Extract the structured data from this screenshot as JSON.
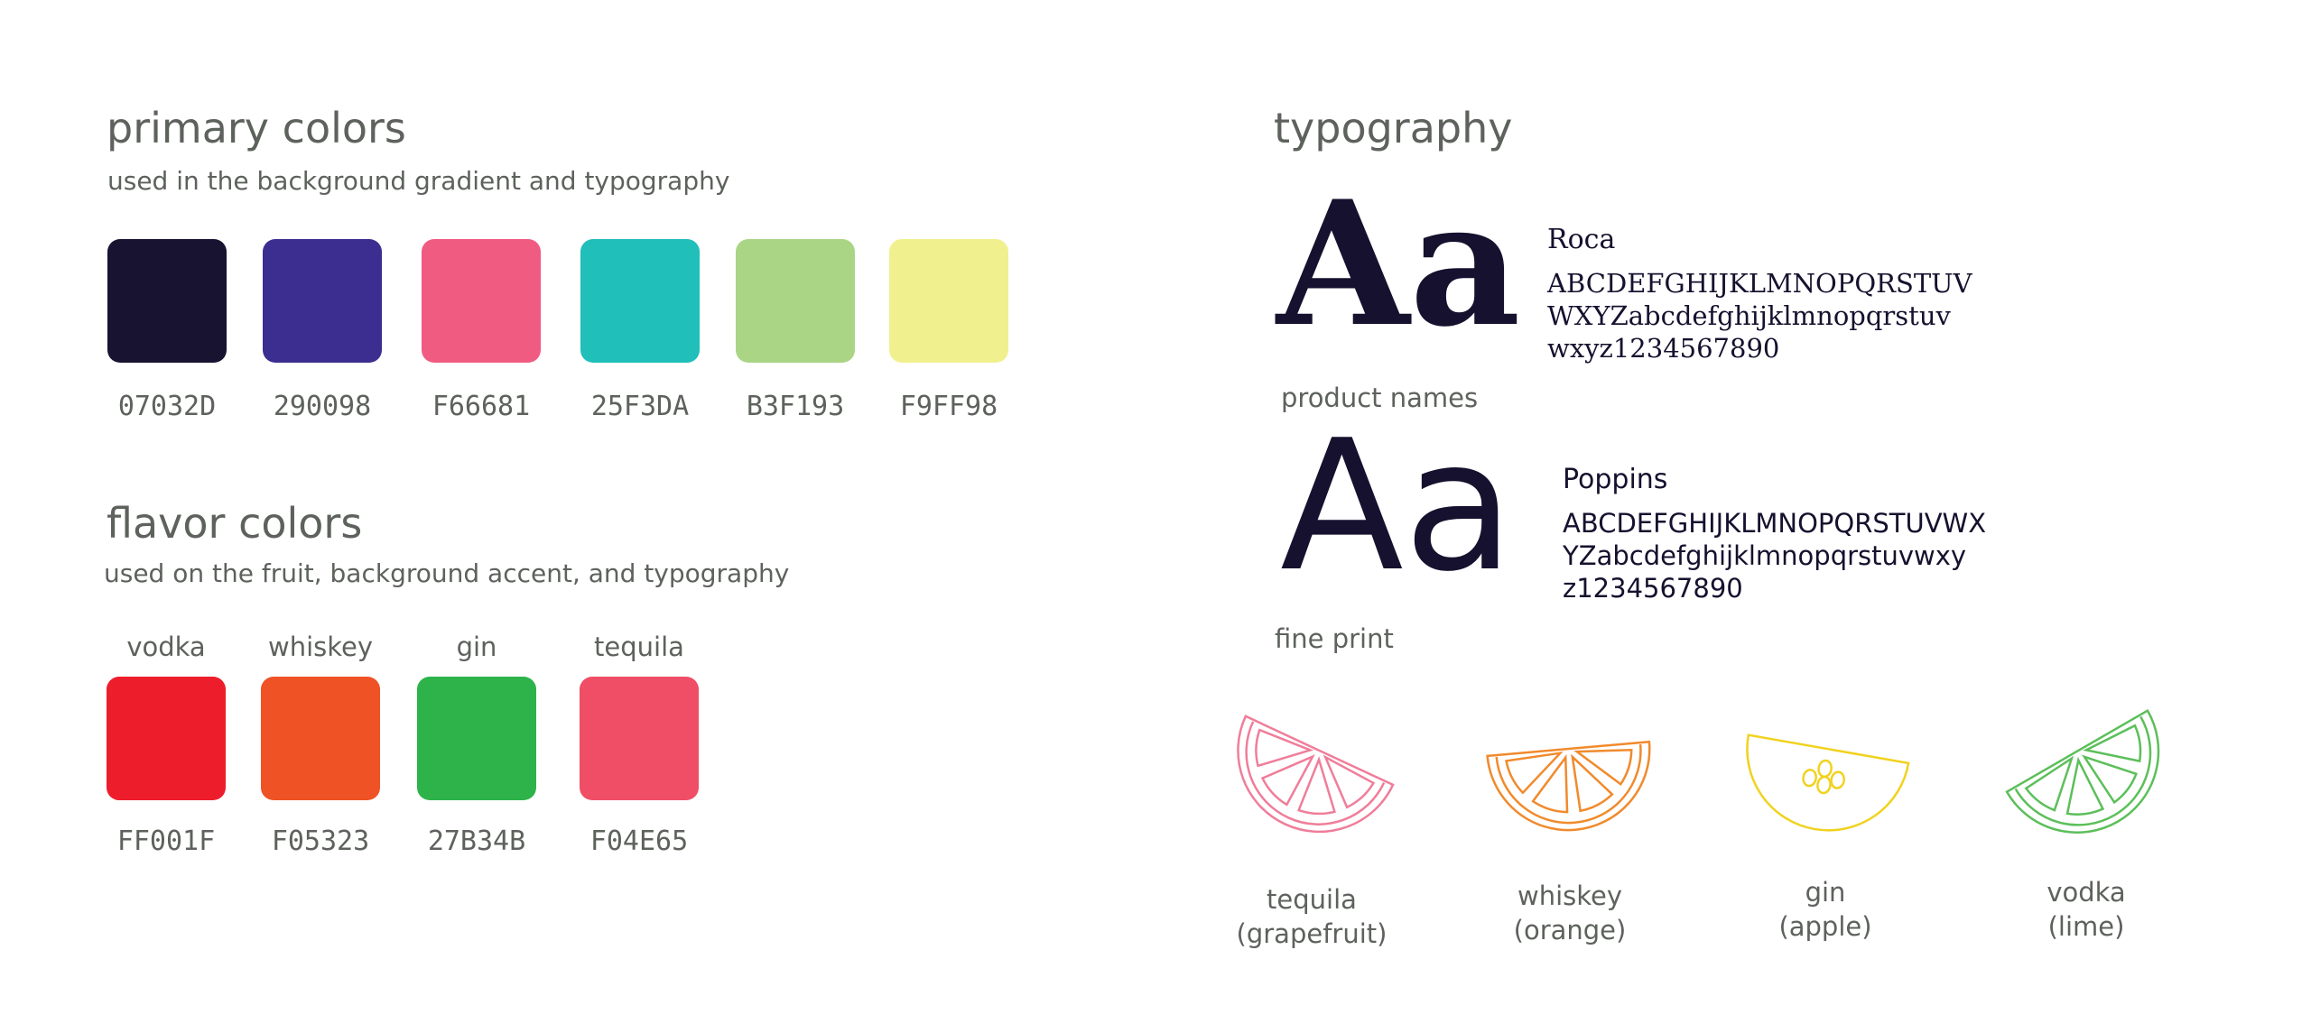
{
  "primary": {
    "title": "primary colors",
    "subtitle": "used in the background gradient and typography",
    "swatches": [
      {
        "label": "07032D",
        "color": "#181331"
      },
      {
        "label": "290098",
        "color": "#3c2e90"
      },
      {
        "label": "F66681",
        "color": "#f05b82"
      },
      {
        "label": "25F3DA",
        "color": "#20bfb9"
      },
      {
        "label": "B3F193",
        "color": "#a9d585"
      },
      {
        "label": "F9FF98",
        "color": "#f1f08f"
      }
    ]
  },
  "flavor": {
    "title": "flavor colors",
    "subtitle": "used on the fruit, background accent, and typography",
    "swatches": [
      {
        "name": "vodka",
        "label": "FF001F",
        "color": "#ee1d2b"
      },
      {
        "name": "whiskey",
        "label": "F05323",
        "color": "#ef5225"
      },
      {
        "name": "gin",
        "label": "27B34B",
        "color": "#2db34a"
      },
      {
        "name": "tequila",
        "label": "F04E65",
        "color": "#ef4e66"
      }
    ]
  },
  "typography": {
    "title": "typography",
    "fonts": [
      {
        "sample": "Aa",
        "name": "Roca",
        "glyphs": [
          "ABCDEFGHIJKLMNOPQRSTUV",
          "WXYZabcdefghijklmnopqrstuv",
          "wxyz1234567890"
        ],
        "usage": "product names"
      },
      {
        "sample": "Aa",
        "name": "Poppins",
        "glyphs": [
          "ABCDEFGHIJKLMNOPQRSTUVWX",
          "YZabcdefghijklmnopqrstuvwxy",
          "z1234567890"
        ],
        "usage": "fine print"
      }
    ]
  },
  "fruits": [
    {
      "name": "tequila",
      "fruit": "(grapefruit)",
      "color": "#ef7e9a"
    },
    {
      "name": "whiskey",
      "fruit": "(orange)",
      "color": "#f18a2c"
    },
    {
      "name": "gin",
      "fruit": "(apple)",
      "color": "#f1d21f"
    },
    {
      "name": "vodka",
      "fruit": "(lime)",
      "color": "#5cbf5a"
    }
  ]
}
